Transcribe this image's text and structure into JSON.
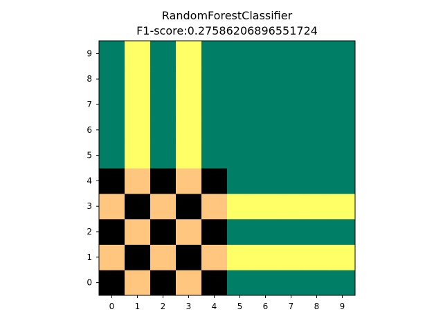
{
  "chart_data": {
    "type": "heatmap",
    "title_lines": [
      "RandomForestClassifier",
      "F1-score:0.27586206896551724"
    ],
    "x_ticks": [
      "0",
      "1",
      "2",
      "3",
      "4",
      "5",
      "6",
      "7",
      "8",
      "9"
    ],
    "y_ticks": [
      "0",
      "1",
      "2",
      "3",
      "4",
      "5",
      "6",
      "7",
      "8",
      "9"
    ],
    "xlim": [
      -0.5,
      9.5
    ],
    "ylim": [
      -0.5,
      9.5
    ],
    "colormap": {
      "0": "#000000",
      "1": "#ffc680",
      "2": "#007f66",
      "3": "#ffff66"
    },
    "rows_from_y0": [
      [
        0,
        1,
        0,
        1,
        0,
        2,
        2,
        2,
        2,
        2
      ],
      [
        1,
        0,
        1,
        0,
        1,
        3,
        3,
        3,
        3,
        3
      ],
      [
        0,
        1,
        0,
        1,
        0,
        2,
        2,
        2,
        2,
        2
      ],
      [
        1,
        0,
        1,
        0,
        1,
        3,
        3,
        3,
        3,
        3
      ],
      [
        0,
        1,
        0,
        1,
        0,
        2,
        2,
        2,
        2,
        2
      ],
      [
        2,
        3,
        2,
        3,
        2,
        2,
        2,
        2,
        2,
        2
      ],
      [
        2,
        3,
        2,
        3,
        2,
        2,
        2,
        2,
        2,
        2
      ],
      [
        2,
        3,
        2,
        3,
        2,
        2,
        2,
        2,
        2,
        2
      ],
      [
        2,
        3,
        2,
        3,
        2,
        2,
        2,
        2,
        2,
        2
      ],
      [
        2,
        3,
        2,
        3,
        2,
        2,
        2,
        2,
        2,
        2
      ]
    ]
  }
}
